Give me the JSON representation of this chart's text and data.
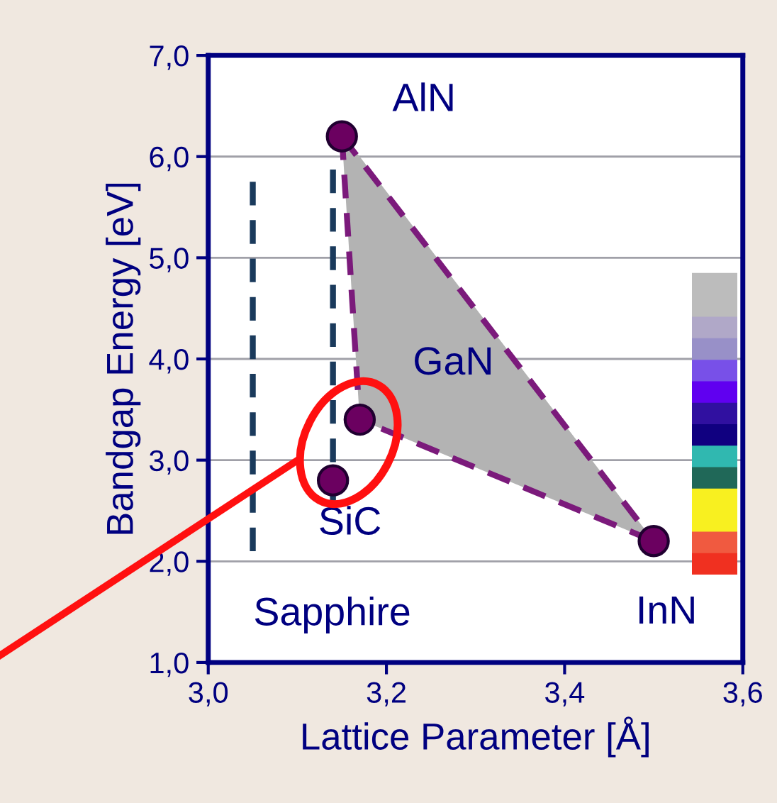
{
  "chart_data": {
    "type": "scatter",
    "xlabel": "Lattice Parameter [Å]",
    "ylabel": "Bandgap Energy [eV]",
    "xlim": [
      3.0,
      3.6
    ],
    "xticks": [
      {
        "value": 3.0,
        "label": "3,0"
      },
      {
        "value": 3.2,
        "label": "3,2"
      },
      {
        "value": 3.4,
        "label": "3,4"
      },
      {
        "value": 3.6,
        "label": "3,6"
      }
    ],
    "ylim": [
      1.0,
      7.0
    ],
    "yticks": [
      {
        "value": 1,
        "label": "1,0"
      },
      {
        "value": 2,
        "label": "2,0"
      },
      {
        "value": 3,
        "label": "3,0"
      },
      {
        "value": 4,
        "label": "4,0"
      },
      {
        "value": 5,
        "label": "5,0"
      },
      {
        "value": 6,
        "label": "6,0"
      },
      {
        "value": 7,
        "label": "7,0"
      }
    ],
    "grid": "y",
    "legend": false,
    "series": [
      {
        "type": "line",
        "color": "#7b1a7b",
        "line_style": "dashed",
        "marker": "none",
        "x": [
          3.15,
          3.17,
          3.5
        ],
        "values": [
          6.2,
          3.4,
          2.2
        ],
        "lower": [
          6.2,
          3.4,
          2.2
        ],
        "upper": [
          6.2,
          6.0,
          2.2
        ]
      },
      {
        "type": "line",
        "color": "#7b1a7b",
        "line_style": "dashed",
        "marker": "none",
        "x": [
          3.15,
          3.5
        ],
        "values": [
          6.2,
          2.2
        ]
      },
      {
        "type": "line",
        "color": "#1a3a5c",
        "line_style": "dashed",
        "marker": "none",
        "x": [
          3.05,
          3.05
        ],
        "values": [
          2.1,
          5.8
        ]
      },
      {
        "type": "line",
        "color": "#1a3a5c",
        "line_style": "dashed",
        "marker": "none",
        "x": [
          3.14,
          3.14
        ],
        "values": [
          2.6,
          6.0
        ]
      },
      {
        "color": "#6b0060",
        "marker": "circle",
        "x": [
          3.15,
          3.17,
          3.14,
          3.5
        ],
        "values": [
          6.2,
          3.4,
          2.8,
          2.2
        ]
      }
    ],
    "annotations": [
      {
        "text": "AlN",
        "x": 3.15,
        "y": 6.2
      },
      {
        "text": "GaN",
        "x": 3.17,
        "y": 3.4
      },
      {
        "text": "SiC",
        "x": 3.14,
        "y": 2.8
      },
      {
        "text": "InN",
        "x": 3.5,
        "y": 2.2
      },
      {
        "text": "Sapphire",
        "x": 3.05,
        "y": 2.1
      }
    ]
  }
}
